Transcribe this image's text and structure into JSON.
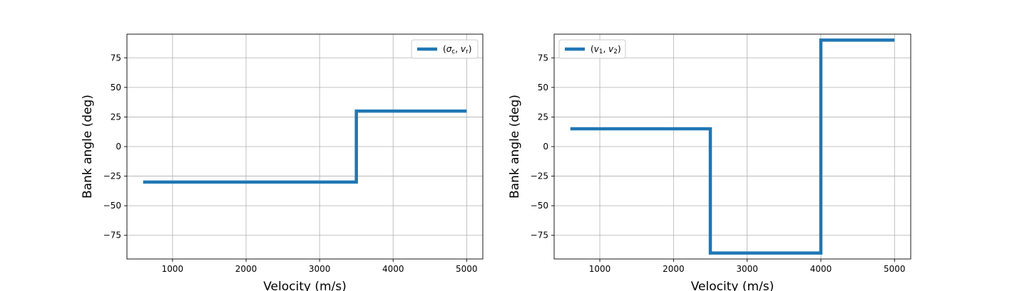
{
  "chart_data": [
    {
      "type": "line",
      "title": "",
      "xlabel": "Velocity (m/s)",
      "ylabel": "Bank angle (deg)",
      "xlim": [
        380,
        5220
      ],
      "ylim": [
        -95,
        95
      ],
      "xticks": [
        1000,
        2000,
        3000,
        4000,
        5000
      ],
      "yticks": [
        -75,
        -50,
        -25,
        0,
        25,
        50,
        75
      ],
      "grid": true,
      "legend_position": "top-right",
      "color": "#1f77b4",
      "series": [
        {
          "legend": [
            "(",
            "σ",
            "c",
            ", ",
            "v",
            "r",
            ")"
          ],
          "x": [
            600,
            3500,
            3500,
            5000
          ],
          "y": [
            -30,
            -30,
            30,
            30
          ]
        }
      ]
    },
    {
      "type": "line",
      "title": "",
      "xlabel": "Velocity (m/s)",
      "ylabel": "Bank angle (deg)",
      "xlim": [
        380,
        5220
      ],
      "ylim": [
        -95,
        95
      ],
      "xticks": [
        1000,
        2000,
        3000,
        4000,
        5000
      ],
      "yticks": [
        -75,
        -50,
        -25,
        0,
        25,
        50,
        75
      ],
      "grid": true,
      "legend_position": "top-left",
      "color": "#1f77b4",
      "series": [
        {
          "legend": [
            "(",
            "v",
            "1",
            ", ",
            "v",
            "2",
            ")"
          ],
          "x": [
            600,
            2500,
            2500,
            4000,
            4000,
            5000
          ],
          "y": [
            15,
            15,
            -90,
            -90,
            90,
            90
          ]
        }
      ]
    }
  ]
}
